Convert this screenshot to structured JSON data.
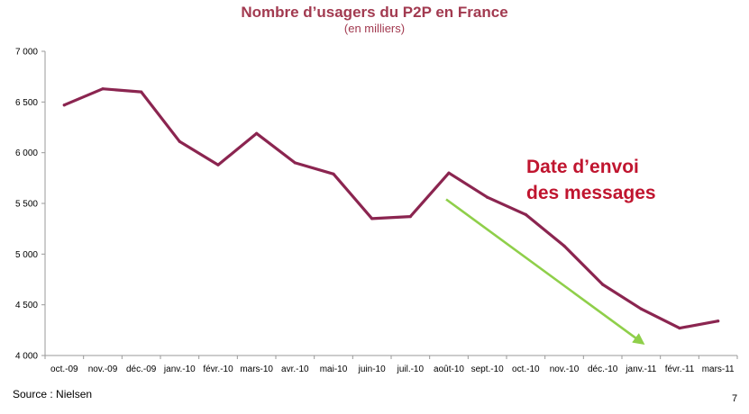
{
  "chart_data": {
    "type": "line",
    "title": "Nombre d’usagers du P2P en France",
    "subtitle": "(en milliers)",
    "categories": [
      "oct.-09",
      "nov.-09",
      "déc.-09",
      "janv.-10",
      "févr.-10",
      "mars-10",
      "avr.-10",
      "mai-10",
      "juin-10",
      "juil.-10",
      "août-10",
      "sept.-10",
      "oct.-10",
      "nov.-10",
      "déc.-10",
      "janv.-11",
      "févr.-11",
      "mars-11"
    ],
    "series": [
      {
        "values": [
          6470,
          6630,
          6600,
          6110,
          5880,
          6190,
          5900,
          5790,
          5350,
          5370,
          5800,
          5560,
          5390,
          5080,
          4700,
          4460,
          4270,
          4340
        ]
      }
    ],
    "ylim": [
      4000,
      7000
    ],
    "yticks": [
      4000,
      4500,
      5000,
      5500,
      6000,
      6500,
      7000
    ],
    "ytick_labels": [
      "4 000",
      "4 500",
      "5 000",
      "5 500",
      "6 000",
      "6 500",
      "7 000"
    ],
    "xlabel": "",
    "ylabel": "",
    "grid": false,
    "annotation": {
      "text_line1": "Date d’envoi",
      "text_line2": "des messages",
      "arrow_from": {
        "x": "août-10",
        "y": 5540
      },
      "arrow_to": {
        "x": "janv.-11",
        "y": 4120
      }
    },
    "colors": {
      "line": "#8b2550",
      "title": "#a23a50",
      "callout": "#c0152f",
      "arrow": "#8fcf4a"
    }
  },
  "footer": {
    "source": "Source : Nielsen",
    "page": "7"
  }
}
